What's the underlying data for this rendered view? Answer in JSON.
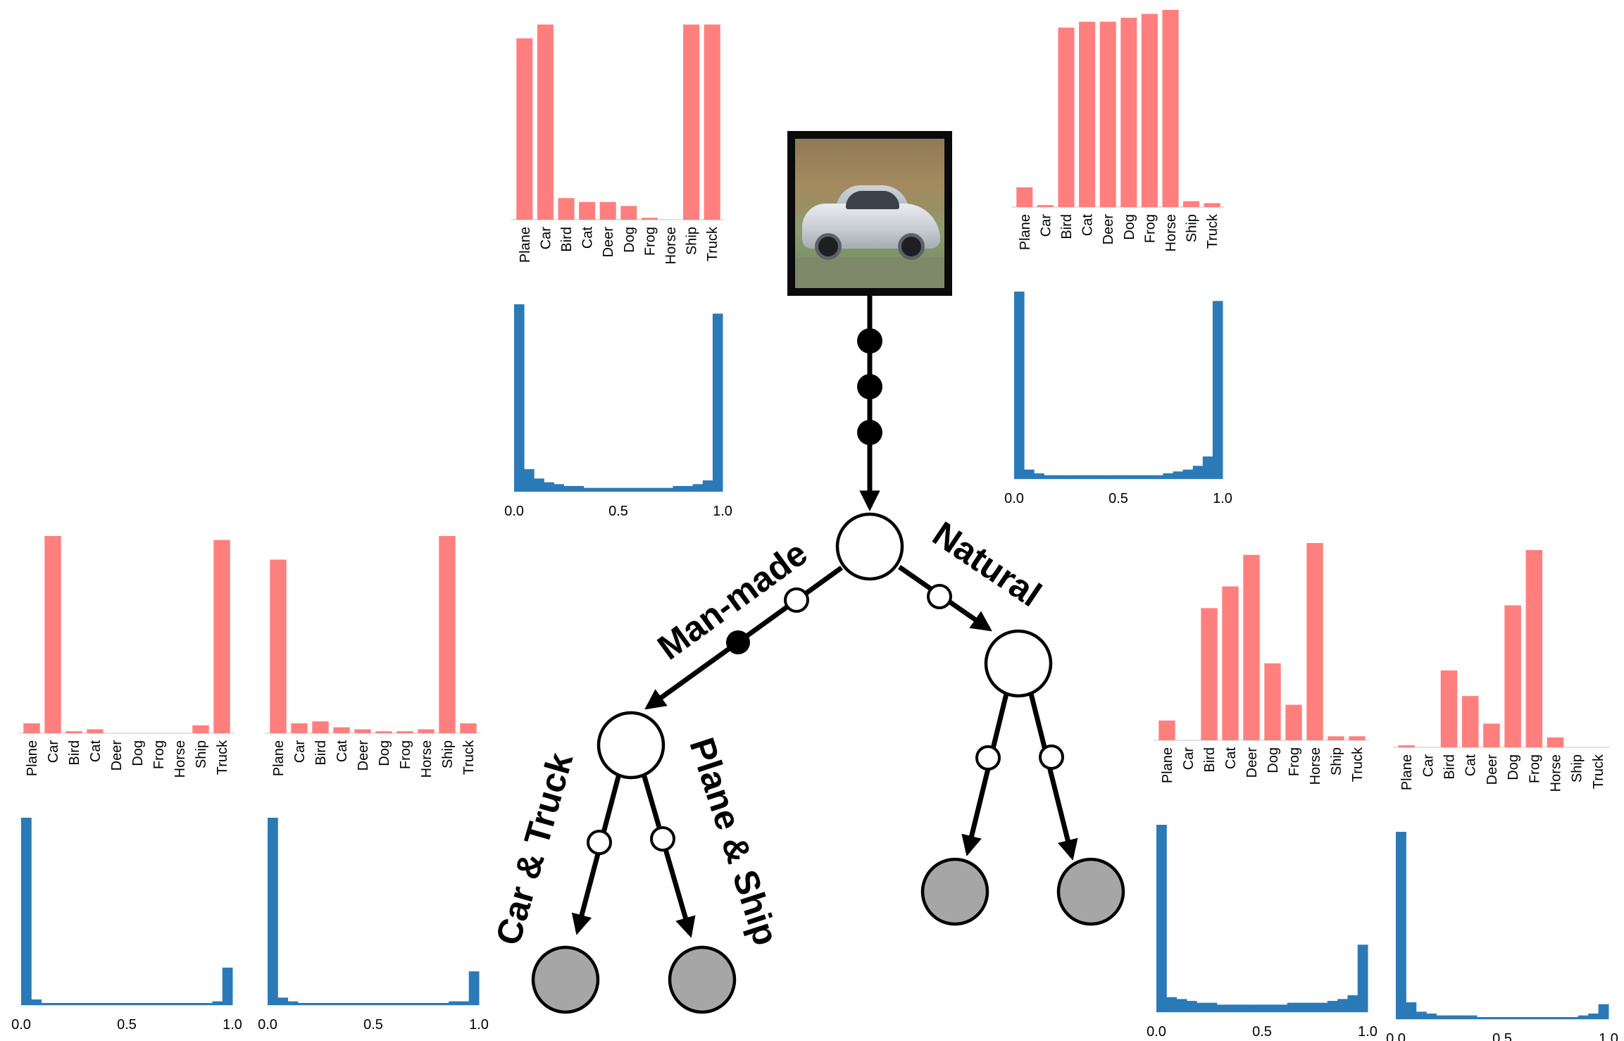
{
  "tree": {
    "edge_labels": {
      "left": "Man-made",
      "right": "Natural",
      "left_left": "Car & Truck",
      "left_right": "Plane & Ship"
    }
  },
  "colors": {
    "class_bar": "#FF7F7F",
    "hist_bar": "#2B7AB8",
    "leaf_fill": "#A6A6A6",
    "node_fill": "#FFFFFF",
    "edge": "#000000"
  },
  "photo": {
    "subject": "car-photo"
  },
  "chart_data": [
    {
      "type": "bar",
      "panel": "root-left",
      "categories": [
        "Plane",
        "Car",
        "Bird",
        "Cat",
        "Deer",
        "Dog",
        "Frog",
        "Horse",
        "Ship",
        "Truck"
      ],
      "values": [
        0.92,
        0.99,
        0.11,
        0.09,
        0.09,
        0.07,
        0.01,
        0.0,
        0.99,
        0.99
      ],
      "ylim": [
        0,
        1
      ],
      "histogram": {
        "x_ticks": [
          "0.0",
          "0.5",
          "1.0"
        ],
        "values": [
          1.0,
          0.12,
          0.07,
          0.05,
          0.04,
          0.03,
          0.03,
          0.02,
          0.02,
          0.02,
          0.02,
          0.02,
          0.02,
          0.02,
          0.02,
          0.02,
          0.03,
          0.03,
          0.04,
          0.06,
          0.95
        ]
      }
    },
    {
      "type": "bar",
      "panel": "root-right",
      "categories": [
        "Plane",
        "Car",
        "Bird",
        "Cat",
        "Deer",
        "Dog",
        "Frog",
        "Horse",
        "Ship",
        "Truck"
      ],
      "values": [
        0.1,
        0.01,
        0.91,
        0.94,
        0.94,
        0.96,
        0.98,
        1.0,
        0.03,
        0.02
      ],
      "ylim": [
        0,
        1
      ],
      "histogram": {
        "x_ticks": [
          "0.0",
          "0.5",
          "1.0"
        ],
        "values": [
          1.0,
          0.05,
          0.03,
          0.02,
          0.02,
          0.02,
          0.02,
          0.02,
          0.02,
          0.02,
          0.02,
          0.02,
          0.02,
          0.02,
          0.02,
          0.03,
          0.04,
          0.05,
          0.07,
          0.12,
          0.95
        ]
      }
    },
    {
      "type": "bar",
      "panel": "man-made-left",
      "categories": [
        "Plane",
        "Car",
        "Bird",
        "Cat",
        "Deer",
        "Dog",
        "Frog",
        "Horse",
        "Ship",
        "Truck"
      ],
      "values": [
        0.05,
        1.0,
        0.01,
        0.02,
        0.0,
        0.0,
        0.0,
        0.0,
        0.04,
        0.98
      ],
      "ylim": [
        0,
        1
      ],
      "histogram": {
        "x_ticks": [
          "0.0",
          "0.5",
          "1.0"
        ],
        "values": [
          1.0,
          0.03,
          0.01,
          0.01,
          0.01,
          0.01,
          0.01,
          0.01,
          0.01,
          0.01,
          0.01,
          0.01,
          0.01,
          0.01,
          0.01,
          0.01,
          0.01,
          0.01,
          0.01,
          0.02,
          0.2
        ]
      }
    },
    {
      "type": "bar",
      "panel": "man-made-right",
      "categories": [
        "Plane",
        "Car",
        "Bird",
        "Cat",
        "Deer",
        "Dog",
        "Frog",
        "Horse",
        "Ship",
        "Truck"
      ],
      "values": [
        0.88,
        0.05,
        0.06,
        0.03,
        0.02,
        0.01,
        0.01,
        0.02,
        1.0,
        0.05
      ],
      "ylim": [
        0,
        1
      ],
      "histogram": {
        "x_ticks": [
          "0.0",
          "0.5",
          "1.0"
        ],
        "values": [
          1.0,
          0.04,
          0.02,
          0.01,
          0.01,
          0.01,
          0.01,
          0.01,
          0.01,
          0.01,
          0.01,
          0.01,
          0.01,
          0.01,
          0.01,
          0.01,
          0.01,
          0.01,
          0.02,
          0.02,
          0.18
        ]
      }
    },
    {
      "type": "bar",
      "panel": "natural-left",
      "categories": [
        "Plane",
        "Car",
        "Bird",
        "Cat",
        "Deer",
        "Dog",
        "Frog",
        "Horse",
        "Ship",
        "Truck"
      ],
      "values": [
        0.1,
        0.0,
        0.67,
        0.78,
        0.94,
        0.39,
        0.18,
        1.0,
        0.02,
        0.02
      ],
      "ylim": [
        0,
        1
      ],
      "histogram": {
        "x_ticks": [
          "0.0",
          "0.5",
          "1.0"
        ],
        "values": [
          1.0,
          0.08,
          0.07,
          0.06,
          0.05,
          0.05,
          0.04,
          0.04,
          0.04,
          0.04,
          0.04,
          0.04,
          0.04,
          0.05,
          0.05,
          0.05,
          0.05,
          0.06,
          0.07,
          0.09,
          0.36
        ]
      }
    },
    {
      "type": "bar",
      "panel": "natural-right",
      "categories": [
        "Plane",
        "Car",
        "Bird",
        "Cat",
        "Deer",
        "Dog",
        "Frog",
        "Horse",
        "Ship",
        "Truck"
      ],
      "values": [
        0.01,
        0.0,
        0.39,
        0.26,
        0.12,
        0.72,
        1.0,
        0.05,
        0.0,
        0.0
      ],
      "ylim": [
        0,
        1
      ],
      "histogram": {
        "x_ticks": [
          "0.0",
          "0.5",
          "1.0"
        ],
        "values": [
          1.0,
          0.09,
          0.04,
          0.03,
          0.02,
          0.02,
          0.02,
          0.02,
          0.01,
          0.01,
          0.01,
          0.01,
          0.01,
          0.01,
          0.01,
          0.01,
          0.01,
          0.01,
          0.02,
          0.03,
          0.08
        ]
      }
    }
  ]
}
